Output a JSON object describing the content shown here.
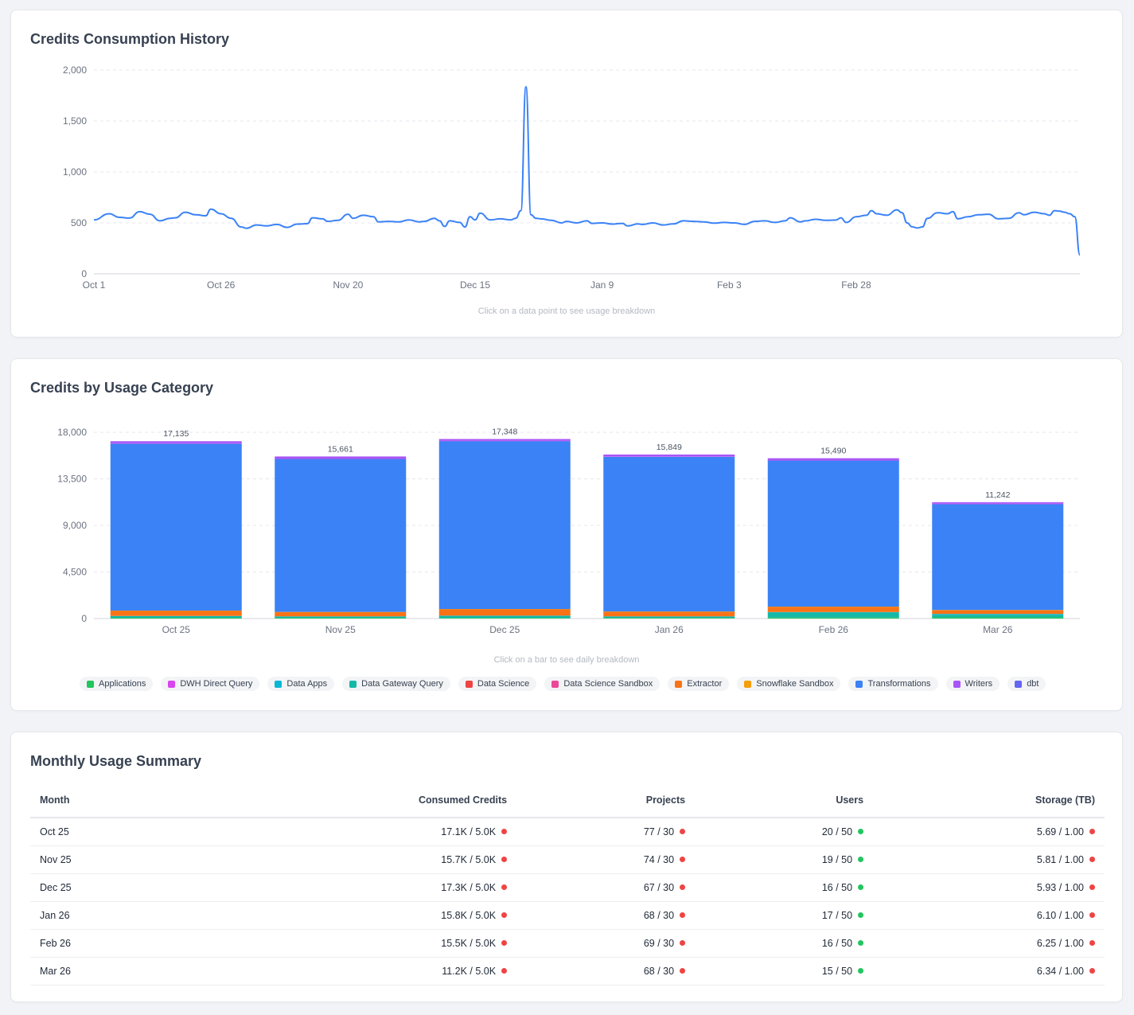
{
  "history": {
    "title": "Credits Consumption History",
    "hint": "Click on a data point to see usage breakdown",
    "chart_data": {
      "type": "line",
      "title": "Credits Consumption History",
      "xlabel": "",
      "ylabel": "",
      "ylim": [
        0,
        2000
      ],
      "yticks": [
        0,
        500,
        1000,
        1500,
        2000
      ],
      "ytick_labels": [
        "0",
        "500",
        "1,000",
        "1,500",
        "2,000"
      ],
      "xtick_labels": [
        "Oct 1",
        "Oct 26",
        "Nov 20",
        "Dec 15",
        "Jan 9",
        "Feb 3",
        "Feb 28"
      ],
      "xtick_days": [
        0,
        25,
        50,
        75,
        100,
        125,
        150
      ],
      "grid": true,
      "color": "#3b82f6",
      "points": [
        [
          0,
          530
        ],
        [
          3,
          590
        ],
        [
          5,
          555
        ],
        [
          7,
          548
        ],
        [
          9,
          610
        ],
        [
          11,
          585
        ],
        [
          13,
          520
        ],
        [
          15,
          545
        ],
        [
          16,
          550
        ],
        [
          18,
          605
        ],
        [
          20,
          580
        ],
        [
          22,
          570
        ],
        [
          23,
          635
        ],
        [
          25,
          590
        ],
        [
          27,
          545
        ],
        [
          29,
          460
        ],
        [
          30,
          448
        ],
        [
          32,
          480
        ],
        [
          34,
          470
        ],
        [
          36,
          485
        ],
        [
          38,
          456
        ],
        [
          40,
          488
        ],
        [
          42,
          492
        ],
        [
          43,
          550
        ],
        [
          45,
          540
        ],
        [
          46,
          515
        ],
        [
          48,
          525
        ],
        [
          50,
          585
        ],
        [
          51,
          545
        ],
        [
          53,
          575
        ],
        [
          55,
          560
        ],
        [
          56,
          510
        ],
        [
          58,
          515
        ],
        [
          60,
          510
        ],
        [
          62,
          530
        ],
        [
          64,
          510
        ],
        [
          65,
          515
        ],
        [
          67,
          545
        ],
        [
          68,
          520
        ],
        [
          69,
          465
        ],
        [
          70,
          520
        ],
        [
          72,
          505
        ],
        [
          73,
          460
        ],
        [
          74,
          560
        ],
        [
          75,
          530
        ],
        [
          76,
          595
        ],
        [
          78,
          530
        ],
        [
          80,
          540
        ],
        [
          82,
          530
        ],
        [
          83,
          545
        ],
        [
          84,
          620
        ],
        [
          85,
          1835
        ],
        [
          86,
          580
        ],
        [
          87,
          545
        ],
        [
          88,
          540
        ],
        [
          90,
          525
        ],
        [
          92,
          500
        ],
        [
          93,
          515
        ],
        [
          95,
          500
        ],
        [
          97,
          520
        ],
        [
          98,
          495
        ],
        [
          100,
          500
        ],
        [
          102,
          488
        ],
        [
          104,
          495
        ],
        [
          105,
          470
        ],
        [
          107,
          490
        ],
        [
          108,
          485
        ],
        [
          110,
          500
        ],
        [
          112,
          480
        ],
        [
          114,
          490
        ],
        [
          116,
          520
        ],
        [
          118,
          515
        ],
        [
          120,
          510
        ],
        [
          122,
          498
        ],
        [
          124,
          505
        ],
        [
          126,
          500
        ],
        [
          128,
          485
        ],
        [
          130,
          515
        ],
        [
          132,
          520
        ],
        [
          134,
          505
        ],
        [
          136,
          520
        ],
        [
          137,
          550
        ],
        [
          139,
          510
        ],
        [
          140,
          520
        ],
        [
          142,
          535
        ],
        [
          144,
          525
        ],
        [
          146,
          528
        ],
        [
          147,
          550
        ],
        [
          148,
          505
        ],
        [
          150,
          560
        ],
        [
          152,
          575
        ],
        [
          153,
          620
        ],
        [
          154,
          590
        ],
        [
          156,
          575
        ],
        [
          158,
          628
        ],
        [
          159,
          600
        ],
        [
          160,
          500
        ],
        [
          161,
          462
        ],
        [
          162,
          450
        ],
        [
          163,
          460
        ],
        [
          164,
          545
        ],
        [
          166,
          600
        ],
        [
          168,
          590
        ],
        [
          169,
          610
        ],
        [
          170,
          540
        ],
        [
          172,
          560
        ],
        [
          174,
          580
        ],
        [
          176,
          585
        ],
        [
          178,
          540
        ],
        [
          180,
          545
        ],
        [
          182,
          600
        ],
        [
          183,
          580
        ],
        [
          185,
          605
        ],
        [
          187,
          590
        ],
        [
          188,
          575
        ],
        [
          189,
          620
        ],
        [
          190,
          615
        ],
        [
          191,
          605
        ],
        [
          192,
          590
        ],
        [
          193,
          560
        ],
        [
          194,
          185
        ]
      ]
    }
  },
  "category": {
    "title": "Credits by Usage Category",
    "hint": "Click on a bar to see daily breakdown",
    "legend": [
      {
        "name": "Applications",
        "color": "#22c55e"
      },
      {
        "name": "DWH Direct Query",
        "color": "#d946ef"
      },
      {
        "name": "Data Apps",
        "color": "#06b6d4"
      },
      {
        "name": "Data Gateway Query",
        "color": "#14b8a6"
      },
      {
        "name": "Data Science",
        "color": "#ef4444"
      },
      {
        "name": "Data Science Sandbox",
        "color": "#ec4899"
      },
      {
        "name": "Extractor",
        "color": "#f97316"
      },
      {
        "name": "Snowflake Sandbox",
        "color": "#f59e0b"
      },
      {
        "name": "Transformations",
        "color": "#3b82f6"
      },
      {
        "name": "Writers",
        "color": "#a855f7"
      },
      {
        "name": "dbt",
        "color": "#6366f1"
      }
    ],
    "chart_data": {
      "type": "bar",
      "stacked": true,
      "title": "Credits by Usage Category",
      "ylim": [
        0,
        18000
      ],
      "yticks": [
        0,
        4500,
        9000,
        13500,
        18000
      ],
      "ytick_labels": [
        "0",
        "4,500",
        "9,000",
        "13,500",
        "18,000"
      ],
      "categories": [
        "Oct 25",
        "Nov 25",
        "Dec 25",
        "Jan 26",
        "Feb 26",
        "Mar 26"
      ],
      "totals": [
        17135,
        15661,
        17348,
        15849,
        15490,
        11242
      ],
      "total_labels": [
        "17,135",
        "15,661",
        "17,348",
        "15,849",
        "15,490",
        "11,242"
      ],
      "series": [
        {
          "name": "Applications",
          "color": "#22c55e",
          "values": [
            80,
            70,
            60,
            60,
            100,
            120
          ]
        },
        {
          "name": "Data Gateway Query",
          "color": "#14b8a6",
          "values": [
            150,
            120,
            200,
            130,
            500,
            250
          ]
        },
        {
          "name": "Data Apps",
          "color": "#06b6d4",
          "values": [
            20,
            20,
            20,
            20,
            30,
            80
          ]
        },
        {
          "name": "Extractor",
          "color": "#f97316",
          "values": [
            500,
            410,
            620,
            450,
            500,
            360
          ]
        },
        {
          "name": "Snowflake Sandbox",
          "color": "#f59e0b",
          "values": [
            20,
            20,
            20,
            20,
            20,
            20
          ]
        },
        {
          "name": "Transformations",
          "color": "#3b82f6",
          "values": [
            16135,
            14791,
            16228,
            14959,
            14130,
            10242
          ]
        },
        {
          "name": "DWH Direct Query",
          "color": "#d946ef",
          "values": [
            30,
            30,
            30,
            30,
            30,
            20
          ]
        },
        {
          "name": "Writers",
          "color": "#a855f7",
          "values": [
            200,
            200,
            170,
            180,
            180,
            150
          ]
        }
      ]
    }
  },
  "summary": {
    "title": "Monthly Usage Summary",
    "columns": [
      "Month",
      "Consumed Credits",
      "Projects",
      "Users",
      "Storage (TB)"
    ],
    "rows": [
      {
        "month": "Oct 25",
        "credits": "17.1K / 5.0K",
        "credits_status": "red",
        "projects": "77 / 30",
        "projects_status": "red",
        "users": "20 / 50",
        "users_status": "green",
        "storage": "5.69 / 1.00",
        "storage_status": "red"
      },
      {
        "month": "Nov 25",
        "credits": "15.7K / 5.0K",
        "credits_status": "red",
        "projects": "74 / 30",
        "projects_status": "red",
        "users": "19 / 50",
        "users_status": "green",
        "storage": "5.81 / 1.00",
        "storage_status": "red"
      },
      {
        "month": "Dec 25",
        "credits": "17.3K / 5.0K",
        "credits_status": "red",
        "projects": "67 / 30",
        "projects_status": "red",
        "users": "16 / 50",
        "users_status": "green",
        "storage": "5.93 / 1.00",
        "storage_status": "red"
      },
      {
        "month": "Jan 26",
        "credits": "15.8K / 5.0K",
        "credits_status": "red",
        "projects": "68 / 30",
        "projects_status": "red",
        "users": "17 / 50",
        "users_status": "green",
        "storage": "6.10 / 1.00",
        "storage_status": "red"
      },
      {
        "month": "Feb 26",
        "credits": "15.5K / 5.0K",
        "credits_status": "red",
        "projects": "69 / 30",
        "projects_status": "red",
        "users": "16 / 50",
        "users_status": "green",
        "storage": "6.25 / 1.00",
        "storage_status": "red"
      },
      {
        "month": "Mar 26",
        "credits": "11.2K / 5.0K",
        "credits_status": "red",
        "projects": "68 / 30",
        "projects_status": "red",
        "users": "15 / 50",
        "users_status": "green",
        "storage": "6.34 / 1.00",
        "storage_status": "red"
      }
    ]
  }
}
